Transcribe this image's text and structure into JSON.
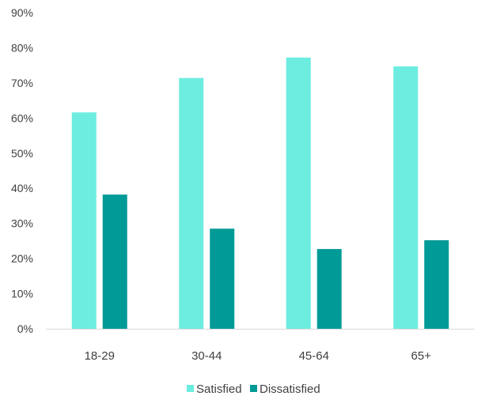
{
  "chart_data": {
    "type": "bar",
    "title": "",
    "xlabel": "",
    "ylabel": "",
    "categories": [
      "18-29",
      "30-44",
      "45-64",
      "65+"
    ],
    "series": [
      {
        "name": "Satisfied",
        "values": [
          61.6,
          71.4,
          77.2,
          74.7
        ],
        "color": "#6cede0"
      },
      {
        "name": "Dissatisfied",
        "values": [
          38.2,
          28.5,
          22.7,
          25.2
        ],
        "color": "#009a97"
      }
    ],
    "ylim": [
      0,
      90
    ],
    "yticks": [
      0,
      10,
      20,
      30,
      40,
      50,
      60,
      70,
      80,
      90
    ],
    "ytick_labels": [
      "0%",
      "10%",
      "20%",
      "30%",
      "40%",
      "50%",
      "60%",
      "70%",
      "80%",
      "90%"
    ],
    "grid": false,
    "legend_position": "bottom"
  }
}
